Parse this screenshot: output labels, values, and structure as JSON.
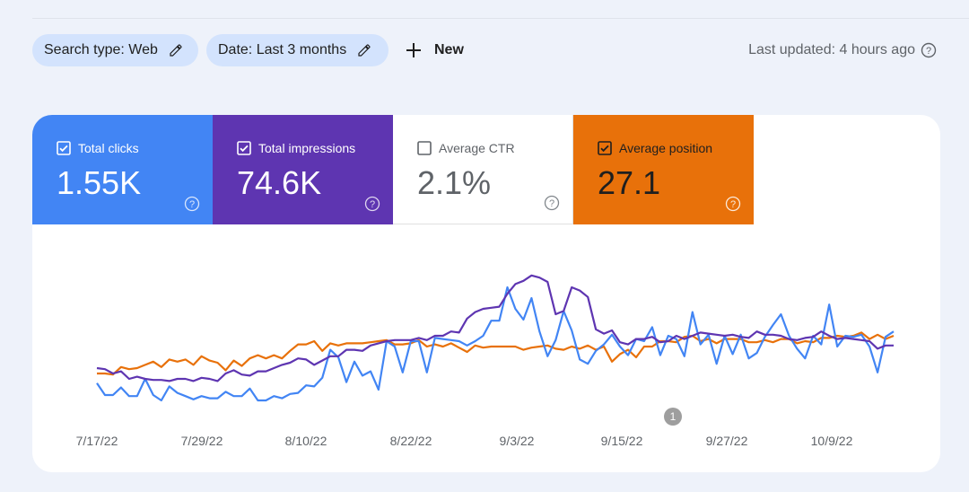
{
  "toolbar": {
    "search_type_label": "Search type: Web",
    "date_label": "Date: Last 3 months",
    "new_label": "New",
    "last_updated": "Last updated: 4 hours ago"
  },
  "metrics": [
    {
      "label": "Total clicks",
      "value": "1.55K",
      "checked": true,
      "color": "#4285f4"
    },
    {
      "label": "Total impressions",
      "value": "74.6K",
      "checked": true,
      "color": "#5e35b1"
    },
    {
      "label": "Average CTR",
      "value": "2.1%",
      "checked": false,
      "color": "#ffffff"
    },
    {
      "label": "Average position",
      "value": "27.1",
      "checked": true,
      "color": "#e8710a"
    }
  ],
  "annotation_count": "1",
  "chart_data": {
    "type": "line",
    "x_tick_labels": [
      "7/17/22",
      "7/29/22",
      "8/10/22",
      "8/22/22",
      "9/3/22",
      "9/15/22",
      "9/27/22",
      "10/9/22"
    ],
    "series": [
      {
        "name": "Total clicks",
        "color": "#4285f4",
        "values": [
          36,
          25,
          25,
          32,
          24,
          24,
          40,
          25,
          20,
          33,
          27,
          24,
          21,
          24,
          22,
          22,
          28,
          24,
          24,
          31,
          20,
          20,
          24,
          22,
          26,
          27,
          34,
          33,
          41,
          67,
          60,
          37,
          56,
          43,
          47,
          30,
          75,
          70,
          46,
          75,
          75,
          46,
          78,
          77,
          76,
          75,
          71,
          75,
          80,
          94,
          94,
          125,
          105,
          95,
          115,
          84,
          61,
          76,
          103,
          85,
          58,
          54,
          66,
          72,
          81,
          70,
          62,
          77,
          75,
          88,
          62,
          80,
          77,
          61,
          102,
          72,
          81,
          54,
          80,
          63,
          81,
          59,
          64,
          79,
          90,
          100,
          80,
          68,
          59,
          80,
          72,
          109,
          70,
          80,
          79,
          81,
          70,
          46,
          79,
          84
        ]
      },
      {
        "name": "Total impressions",
        "color": "#5e35b1",
        "values": [
          50,
          49,
          45,
          47,
          40,
          42,
          40,
          39,
          39,
          38,
          40,
          40,
          38,
          41,
          40,
          38,
          45,
          48,
          44,
          43,
          47,
          47,
          50,
          53,
          55,
          59,
          58,
          53,
          57,
          61,
          61,
          67,
          67,
          66,
          71,
          73,
          75,
          76,
          76,
          76,
          78,
          76,
          80,
          80,
          84,
          83,
          96,
          102,
          105,
          106,
          107,
          119,
          128,
          131,
          136,
          134,
          130,
          100,
          103,
          125,
          122,
          116,
          86,
          82,
          85,
          74,
          72,
          77,
          77,
          79,
          74,
          75,
          80,
          77,
          80,
          83,
          82,
          81,
          80,
          81,
          79,
          78,
          84,
          81,
          81,
          80,
          77,
          76,
          78,
          79,
          84,
          80,
          77,
          78,
          77,
          76,
          75,
          68,
          71,
          71
        ]
      },
      {
        "name": "Average position",
        "color": "#e8710a",
        "values": [
          45,
          45,
          44,
          51,
          49,
          50,
          53,
          56,
          51,
          58,
          56,
          58,
          53,
          61,
          57,
          55,
          48,
          57,
          52,
          59,
          62,
          59,
          62,
          59,
          66,
          72,
          72,
          75,
          66,
          73,
          71,
          73,
          73,
          73,
          74,
          75,
          76,
          72,
          72,
          73,
          76,
          70,
          72,
          70,
          73,
          69,
          65,
          71,
          69,
          70,
          70,
          70,
          70,
          67,
          69,
          70,
          71,
          68,
          67,
          70,
          68,
          71,
          67,
          70,
          56,
          63,
          67,
          60,
          70,
          70,
          75,
          75,
          74,
          79,
          80,
          75,
          77,
          73,
          77,
          77,
          77,
          74,
          74,
          76,
          74,
          77,
          77,
          73,
          75,
          74,
          78,
          78,
          80,
          79,
          80,
          83,
          77,
          81,
          77,
          80
        ]
      }
    ]
  }
}
